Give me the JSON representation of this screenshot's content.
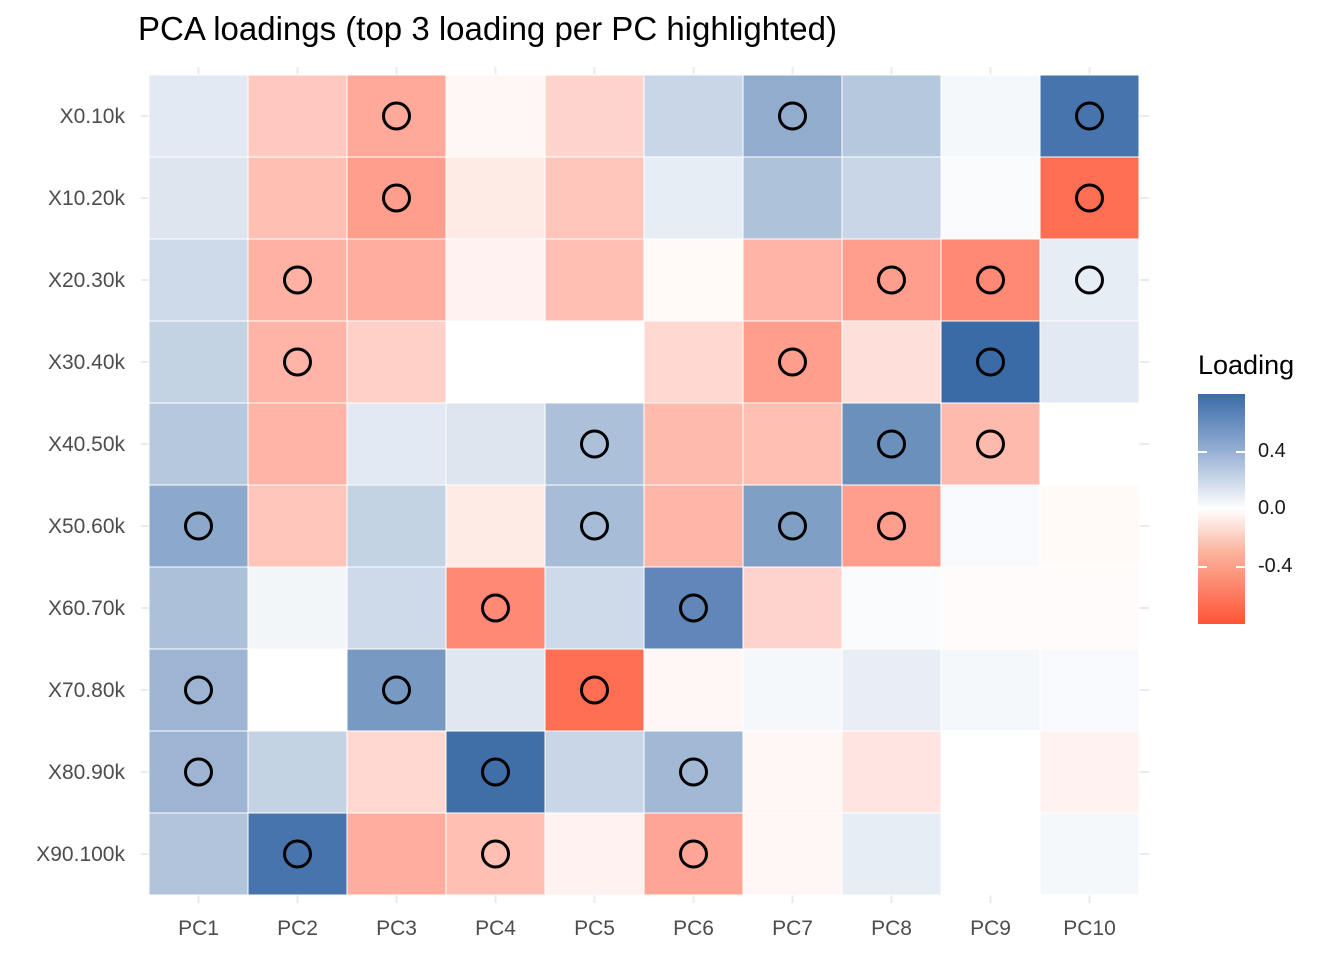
{
  "chart_data": {
    "type": "heatmap",
    "title": "PCA loadings (top 3 loading per PC highlighted)",
    "x_categories": [
      "PC1",
      "PC2",
      "PC3",
      "PC4",
      "PC5",
      "PC6",
      "PC7",
      "PC8",
      "PC9",
      "PC10"
    ],
    "y_categories": [
      "X0.10k",
      "X10.20k",
      "X20.30k",
      "X30.40k",
      "X40.50k",
      "X50.60k",
      "X60.70k",
      "X70.80k",
      "X80.90k",
      "X90.100k"
    ],
    "values": [
      [
        0.12,
        -0.25,
        -0.4,
        -0.04,
        -0.2,
        0.22,
        0.45,
        0.3,
        0.04,
        0.75
      ],
      [
        0.14,
        -0.3,
        -0.45,
        -0.1,
        -0.27,
        0.1,
        0.33,
        0.22,
        0.02,
        -0.68
      ],
      [
        0.2,
        -0.36,
        -0.38,
        -0.06,
        -0.3,
        -0.03,
        -0.35,
        -0.45,
        -0.55,
        0.1
      ],
      [
        0.24,
        -0.35,
        -0.22,
        0.0,
        0.0,
        -0.18,
        -0.45,
        -0.15,
        0.8,
        0.12
      ],
      [
        0.3,
        -0.35,
        0.12,
        0.14,
        0.34,
        -0.32,
        -0.3,
        0.6,
        -0.32,
        0.0
      ],
      [
        0.47,
        -0.27,
        0.24,
        -0.1,
        0.36,
        -0.34,
        0.52,
        -0.45,
        0.03,
        -0.03
      ],
      [
        0.34,
        0.05,
        0.2,
        -0.55,
        0.2,
        0.65,
        -0.2,
        0.02,
        -0.02,
        -0.02
      ],
      [
        0.4,
        0.0,
        0.55,
        0.13,
        -0.68,
        -0.04,
        0.04,
        0.09,
        0.04,
        0.03
      ],
      [
        0.4,
        0.24,
        -0.18,
        0.78,
        0.22,
        0.38,
        -0.04,
        -0.12,
        0.0,
        -0.06
      ],
      [
        0.32,
        0.75,
        -0.38,
        -0.3,
        -0.06,
        -0.42,
        -0.04,
        0.1,
        0.0,
        0.04
      ]
    ],
    "highlighted": [
      [
        0,
        2
      ],
      [
        0,
        6
      ],
      [
        0,
        9
      ],
      [
        1,
        2
      ],
      [
        1,
        9
      ],
      [
        2,
        1
      ],
      [
        2,
        7
      ],
      [
        2,
        8
      ],
      [
        2,
        9
      ],
      [
        3,
        1
      ],
      [
        3,
        6
      ],
      [
        3,
        8
      ],
      [
        4,
        4
      ],
      [
        4,
        7
      ],
      [
        4,
        8
      ],
      [
        5,
        0
      ],
      [
        5,
        4
      ],
      [
        5,
        6
      ],
      [
        5,
        7
      ],
      [
        6,
        3
      ],
      [
        6,
        5
      ],
      [
        7,
        0
      ],
      [
        7,
        2
      ],
      [
        7,
        4
      ],
      [
        8,
        0
      ],
      [
        8,
        3
      ],
      [
        8,
        5
      ],
      [
        9,
        1
      ],
      [
        9,
        3
      ],
      [
        9,
        5
      ]
    ],
    "colors": {
      "high": "#3b6ba6",
      "mid": "#ffffff",
      "low": "#ff5335"
    },
    "limits": [
      -0.8,
      0.8
    ],
    "legend": {
      "title": "Loading",
      "position": "right",
      "ticks": [
        0.4,
        0.0,
        -0.4
      ],
      "tick_labels": [
        "0.4",
        "0.0",
        "-0.4"
      ]
    },
    "grid": true
  }
}
